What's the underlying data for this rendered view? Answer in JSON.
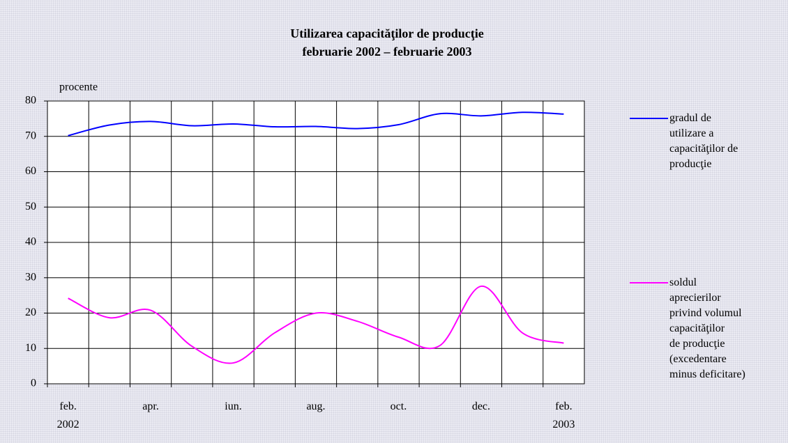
{
  "chart_data": {
    "type": "line",
    "title": "Utilizarea capacităţilor de producţie",
    "subtitle": "februarie 2002 – februarie 2003",
    "y_label": "procente",
    "categories": [
      "feb.\n2002",
      null,
      "apr.",
      null,
      "iun.",
      null,
      "aug.",
      null,
      "oct.",
      null,
      "dec.",
      null,
      "feb.\n2003"
    ],
    "series": [
      {
        "name": "gradul de\nutilizare a\ncapacităţilor de\nproducţie",
        "color": "#0000ff",
        "values": [
          70.2,
          73.2,
          74.2,
          73.0,
          73.5,
          72.7,
          72.8,
          72.2,
          73.3,
          76.4,
          75.8,
          76.8,
          76.3
        ]
      },
      {
        "name": "soldul\naprecierilor\nprivind volumul\ncapacităţilor\nde producţie\n(excedentare\nminus deficitare)",
        "color": "#ff00ff",
        "values": [
          24.2,
          18.7,
          20.8,
          10.6,
          5.9,
          14.4,
          20.0,
          17.7,
          13.2,
          10.8,
          27.6,
          14.4,
          11.5
        ]
      }
    ],
    "ylim": [
      0,
      80
    ],
    "yticks": [
      0,
      10,
      20,
      30,
      40,
      50,
      60,
      70,
      80
    ],
    "grid": true
  }
}
